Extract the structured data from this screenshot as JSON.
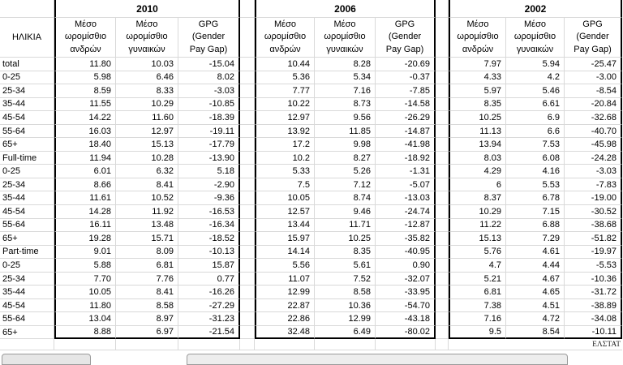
{
  "colors": {
    "grid_line": "#d9d9d9",
    "block_border": "#000000",
    "text": "#000000",
    "tab_fill": "#e6e6e6",
    "tab_border": "#9a9a9a"
  },
  "table": {
    "age_header": "ΗΛΙΚΙΑ",
    "year_blocks": [
      {
        "year": "2010",
        "col_headers": [
          "Μέσο\nωρομίσθιο\nανδρών",
          "Μέσο\nωρομίσθιο\nγυναικών",
          "GPG\n(Gender\nPay Gap)"
        ]
      },
      {
        "year": "2006",
        "col_headers": [
          "Μέσο\nωρομίσθιο\nανδρών",
          "Μέσο\nωρομίσθιο\nγυναικών",
          "GPG\n(Gender\nPay Gap)"
        ]
      },
      {
        "year": "2002",
        "col_headers": [
          "Μέσο\nωρομίσθιο\nανδρών",
          "Μέσο\nωρομίσθιο\nγυναικών",
          "GPG\n(Gender\nPay Gap)"
        ]
      }
    ],
    "rows": [
      {
        "label": "total",
        "values": [
          [
            "11.80",
            "10.03",
            "-15.04"
          ],
          [
            "10.44",
            "8.28",
            "-20.69"
          ],
          [
            "7.97",
            "5.94",
            "-25.47"
          ]
        ]
      },
      {
        "label": "0-25",
        "values": [
          [
            "5.98",
            "6.46",
            "8.02"
          ],
          [
            "5.36",
            "5.34",
            "-0.37"
          ],
          [
            "4.33",
            "4.2",
            "-3.00"
          ]
        ]
      },
      {
        "label": "25-34",
        "values": [
          [
            "8.59",
            "8.33",
            "-3.03"
          ],
          [
            "7.77",
            "7.16",
            "-7.85"
          ],
          [
            "5.97",
            "5.46",
            "-8.54"
          ]
        ]
      },
      {
        "label": "35-44",
        "values": [
          [
            "11.55",
            "10.29",
            "-10.85"
          ],
          [
            "10.22",
            "8.73",
            "-14.58"
          ],
          [
            "8.35",
            "6.61",
            "-20.84"
          ]
        ]
      },
      {
        "label": "45-54",
        "values": [
          [
            "14.22",
            "11.60",
            "-18.39"
          ],
          [
            "12.97",
            "9.56",
            "-26.29"
          ],
          [
            "10.25",
            "6.9",
            "-32.68"
          ]
        ]
      },
      {
        "label": "55-64",
        "values": [
          [
            "16.03",
            "12.97",
            "-19.11"
          ],
          [
            "13.92",
            "11.85",
            "-14.87"
          ],
          [
            "11.13",
            "6.6",
            "-40.70"
          ]
        ]
      },
      {
        "label": "65+",
        "values": [
          [
            "18.40",
            "15.13",
            "-17.79"
          ],
          [
            "17.2",
            "9.98",
            "-41.98"
          ],
          [
            "13.94",
            "7.53",
            "-45.98"
          ]
        ]
      },
      {
        "label": "Full-time",
        "values": [
          [
            "11.94",
            "10.28",
            "-13.90"
          ],
          [
            "10.2",
            "8.27",
            "-18.92"
          ],
          [
            "8.03",
            "6.08",
            "-24.28"
          ]
        ]
      },
      {
        "label": "0-25",
        "values": [
          [
            "6.01",
            "6.32",
            "5.18"
          ],
          [
            "5.33",
            "5.26",
            "-1.31"
          ],
          [
            "4.29",
            "4.16",
            "-3.03"
          ]
        ]
      },
      {
        "label": "25-34",
        "values": [
          [
            "8.66",
            "8.41",
            "-2.90"
          ],
          [
            "7.5",
            "7.12",
            "-5.07"
          ],
          [
            "6",
            "5.53",
            "-7.83"
          ]
        ]
      },
      {
        "label": "35-44",
        "values": [
          [
            "11.61",
            "10.52",
            "-9.36"
          ],
          [
            "10.05",
            "8.74",
            "-13.03"
          ],
          [
            "8.37",
            "6.78",
            "-19.00"
          ]
        ]
      },
      {
        "label": "45-54",
        "values": [
          [
            "14.28",
            "11.92",
            "-16.53"
          ],
          [
            "12.57",
            "9.46",
            "-24.74"
          ],
          [
            "10.29",
            "7.15",
            "-30.52"
          ]
        ]
      },
      {
        "label": "55-64",
        "values": [
          [
            "16.11",
            "13.48",
            "-16.34"
          ],
          [
            "13.44",
            "11.71",
            "-12.87"
          ],
          [
            "11.22",
            "6.88",
            "-38.68"
          ]
        ]
      },
      {
        "label": "65+",
        "values": [
          [
            "19.28",
            "15.71",
            "-18.52"
          ],
          [
            "15.97",
            "10.25",
            "-35.82"
          ],
          [
            "15.13",
            "7.29",
            "-51.82"
          ]
        ]
      },
      {
        "label": "Part-time",
        "values": [
          [
            "9.01",
            "8.09",
            "-10.13"
          ],
          [
            "14.14",
            "8.35",
            "-40.95"
          ],
          [
            "5.76",
            "4.61",
            "-19.97"
          ]
        ]
      },
      {
        "label": "0-25",
        "values": [
          [
            "5.88",
            "6.81",
            "15.87"
          ],
          [
            "5.56",
            "5.61",
            "0.90"
          ],
          [
            "4.7",
            "4.44",
            "-5.53"
          ]
        ]
      },
      {
        "label": "25-34",
        "values": [
          [
            "7.70",
            "7.76",
            "0.77"
          ],
          [
            "11.07",
            "7.52",
            "-32.07"
          ],
          [
            "5.21",
            "4.67",
            "-10.36"
          ]
        ]
      },
      {
        "label": "35-44",
        "values": [
          [
            "10.05",
            "8.41",
            "-16.26"
          ],
          [
            "12.99",
            "8.58",
            "-33.95"
          ],
          [
            "6.81",
            "4.65",
            "-31.72"
          ]
        ]
      },
      {
        "label": "45-54",
        "values": [
          [
            "11.80",
            "8.58",
            "-27.29"
          ],
          [
            "22.87",
            "10.36",
            "-54.70"
          ],
          [
            "7.38",
            "4.51",
            "-38.89"
          ]
        ]
      },
      {
        "label": "55-64",
        "values": [
          [
            "13.04",
            "8.97",
            "-31.23"
          ],
          [
            "22.86",
            "12.99",
            "-43.18"
          ],
          [
            "7.16",
            "4.72",
            "-34.08"
          ]
        ]
      },
      {
        "label": "65+",
        "values": [
          [
            "8.88",
            "6.97",
            "-21.54"
          ],
          [
            "32.48",
            "6.49",
            "-80.02"
          ],
          [
            "9.5",
            "8.54",
            "-10.11"
          ]
        ]
      }
    ]
  },
  "footer": {
    "source": "ΕΛΣΤΑΤ"
  }
}
